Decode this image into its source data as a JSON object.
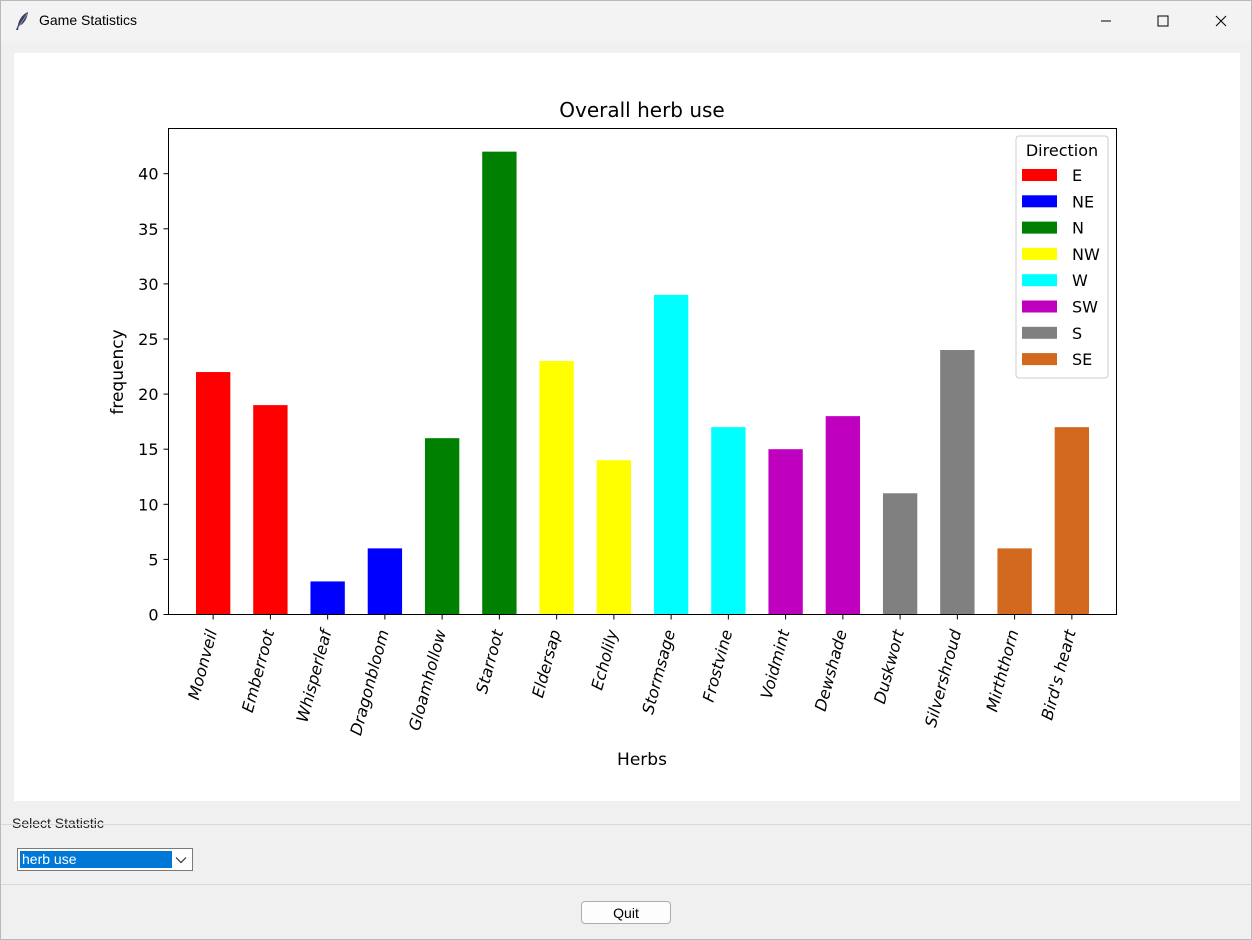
{
  "window": {
    "title": "Game Statistics",
    "icons": {
      "app": "feather-icon",
      "minimize": "minimize-icon",
      "maximize": "maximize-icon",
      "close": "close-icon"
    }
  },
  "controls": {
    "group_label": "Select Statistic",
    "combo_value": "herb use",
    "quit_label": "Quit"
  },
  "chart_data": {
    "type": "bar",
    "title": "Overall herb use",
    "xlabel": "Herbs",
    "ylabel": "frequency",
    "ylim": [
      0,
      44.1
    ],
    "yticks": [
      0,
      5,
      10,
      15,
      20,
      25,
      30,
      35,
      40
    ],
    "grid": false,
    "categories": [
      "Moonveil",
      "Emberroot",
      "Whisperleaf",
      "Dragonbloom",
      "Gloamhollow",
      "Starroot",
      "Eldersap",
      "Echolily",
      "Stormsage",
      "Frostvine",
      "Voidmint",
      "Dewshade",
      "Duskwort",
      "Silvershroud",
      "Mirththorn",
      "Bird's heart"
    ],
    "values": [
      22,
      19,
      3,
      6,
      16,
      42,
      23,
      14,
      29,
      17,
      15,
      18,
      11,
      24,
      6,
      17
    ],
    "bar_groups": [
      "E",
      "E",
      "NE",
      "NE",
      "N",
      "N",
      "NW",
      "NW",
      "W",
      "W",
      "SW",
      "SW",
      "S",
      "S",
      "SE",
      "SE"
    ],
    "legend": {
      "title": "Direction",
      "placement": "upper right",
      "entries": [
        {
          "label": "E",
          "color": "#ff0000"
        },
        {
          "label": "NE",
          "color": "#0000ff"
        },
        {
          "label": "N",
          "color": "#008000"
        },
        {
          "label": "NW",
          "color": "#ffff00"
        },
        {
          "label": "W",
          "color": "#00ffff"
        },
        {
          "label": "SW",
          "color": "#bf00bf"
        },
        {
          "label": "S",
          "color": "#808080"
        },
        {
          "label": "SE",
          "color": "#d2691e"
        }
      ]
    }
  }
}
